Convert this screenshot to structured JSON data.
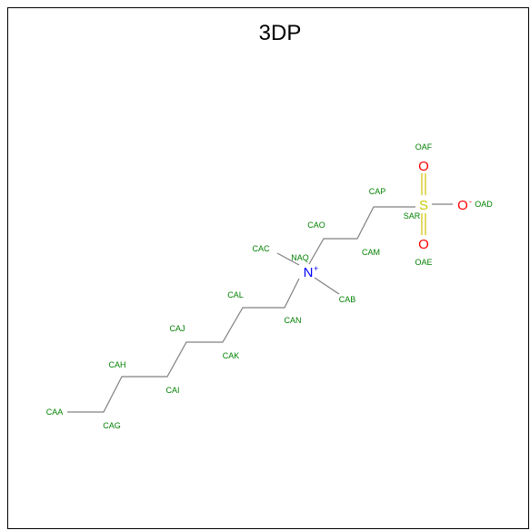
{
  "title": "3DP",
  "atom_labels": {
    "OAF": "OAF",
    "CAP": "CAP",
    "SAR": "SAR",
    "OAD": "OAD",
    "OAE": "OAE",
    "CAO": "CAO",
    "CAM": "CAM",
    "CAC": "CAC",
    "NAQ": "NAQ",
    "CAB": "CAB",
    "CAL": "CAL",
    "CAN": "CAN",
    "CAJ": "CAJ",
    "CAK": "CAK",
    "CAH": "CAH",
    "CAI": "CAI",
    "CAA": "CAA",
    "CAG": "CAG"
  },
  "element_symbols": {
    "S": "S",
    "N": "N",
    "O_top": "O",
    "O_right": "O",
    "O_bottom": "O"
  },
  "charges": {
    "N": "+",
    "O": "-"
  },
  "colors": {
    "carbon_label": "#008000",
    "bond": "#808080",
    "nitrogen": "#0000ff",
    "oxygen": "#ff0000",
    "sulfur": "#cccc00"
  }
}
